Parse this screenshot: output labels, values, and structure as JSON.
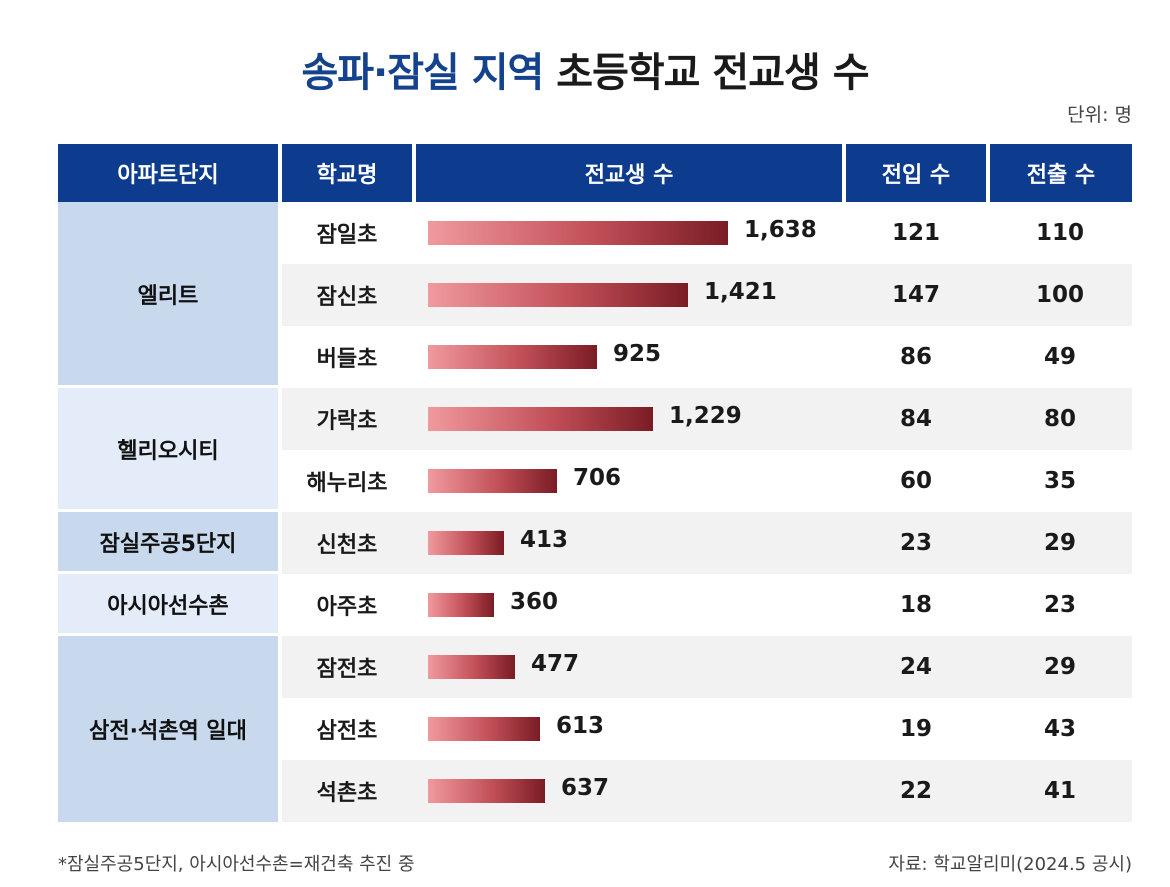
{
  "title": {
    "highlight": "송파·잠실 지역",
    "rest": " 초등학교 전교생 수"
  },
  "unit_label": "단위: 명",
  "headers": [
    "아파트단지",
    "학교명",
    "전교생 수",
    "전입 수",
    "전출 수"
  ],
  "groups": [
    {
      "name": "엘리트",
      "rows": 3
    },
    {
      "name": "헬리오시티",
      "rows": 2
    },
    {
      "name": "잠실주공5단지",
      "rows": 1
    },
    {
      "name": "아시아선수촌",
      "rows": 1
    },
    {
      "name": "삼전·석촌역 일대",
      "rows": 3
    }
  ],
  "chart_data": {
    "type": "bar",
    "orientation": "horizontal",
    "categories": [
      "잠일초",
      "잠신초",
      "버들초",
      "가락초",
      "해누리초",
      "신천초",
      "아주초",
      "잠전초",
      "삼전초",
      "석촌초"
    ],
    "values": [
      1638,
      1421,
      925,
      1229,
      706,
      413,
      360,
      477,
      613,
      637
    ],
    "value_labels": [
      "1,638",
      "1,421",
      "925",
      "1,229",
      "706",
      "413",
      "360",
      "477",
      "613",
      "637"
    ],
    "transfer_in": [
      "121",
      "147",
      "86",
      "84",
      "60",
      "23",
      "18",
      "24",
      "19",
      "22"
    ],
    "transfer_out": [
      "110",
      "100",
      "49",
      "80",
      "35",
      "29",
      "23",
      "29",
      "43",
      "41"
    ]
  },
  "colors": {
    "header_bg": "#0d3b8e",
    "title_highlight": "#14428c",
    "bar_start": "#f09a9e",
    "bar_end": "#7a1c24"
  },
  "footnote": "*잠실주공5단지, 아시아선수촌=재건축 추진 중",
  "source": "자료: 학교알리미(2024.5 공시)"
}
